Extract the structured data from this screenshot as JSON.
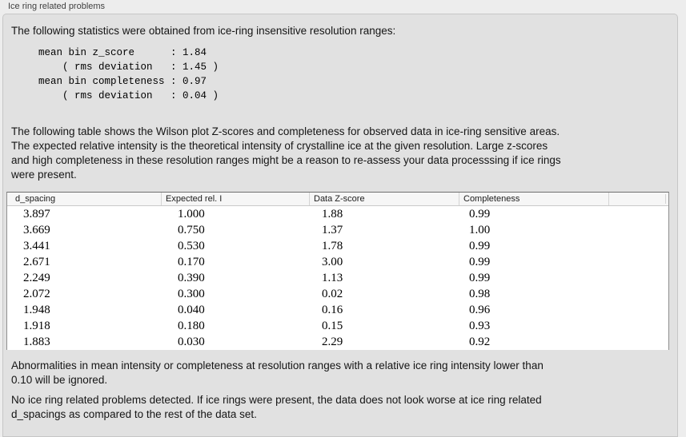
{
  "panel": {
    "title": "Ice ring related problems"
  },
  "intro_text": "The following statistics were obtained from ice-ring insensitive resolution ranges:",
  "stats_block": "mean bin z_score      : 1.84\n    ( rms deviation   : 1.45 )\nmean bin completeness : 0.97\n    ( rms deviation   : 0.04 )",
  "stats": {
    "mean_bin_z_score": "1.84",
    "z_score_rms_deviation": "1.45",
    "mean_bin_completeness": "0.97",
    "completeness_rms_deviation": "0.04"
  },
  "table_description": "The following table shows the Wilson plot Z-scores and completeness for observed data in ice-ring sensitive areas.\nThe expected relative intensity is the theoretical intensity of crystalline ice at the given resolution. Large z-scores\nand high completeness in these resolution ranges might be a reason to re-assess your data processsing if ice rings\nwere present.",
  "table": {
    "columns": [
      "d_spacing",
      "Expected rel. I",
      "Data Z-score",
      "Completeness"
    ],
    "rows": [
      [
        "3.897",
        "1.000",
        "1.88",
        "0.99"
      ],
      [
        "3.669",
        "0.750",
        "1.37",
        "1.00"
      ],
      [
        "3.441",
        "0.530",
        "1.78",
        "0.99"
      ],
      [
        "2.671",
        "0.170",
        "3.00",
        "0.99"
      ],
      [
        "2.249",
        "0.390",
        "1.13",
        "0.99"
      ],
      [
        "2.072",
        "0.300",
        "0.02",
        "0.98"
      ],
      [
        "1.948",
        "0.040",
        "0.16",
        "0.96"
      ],
      [
        "1.918",
        "0.180",
        "0.15",
        "0.93"
      ],
      [
        "1.883",
        "0.030",
        "2.29",
        "0.92"
      ]
    ]
  },
  "ignore_note": "Abnormalities in mean intensity or completeness at resolution ranges with a relative ice ring intensity lower than\n0.10 will be ignored.",
  "conclusion": "No ice ring related problems detected. If ice rings were present, the data does not look worse at ice ring related\nd_spacings as compared to the rest of the data set.",
  "colors": {
    "window_bg": "#ededed",
    "groupbox_bg": "#e1e1e1",
    "groupbox_border": "#c6c6c6",
    "table_bg": "#ffffff",
    "table_border": "#8f8f8f",
    "header_bg": "#f6f6f6",
    "text": "#1a1a1a"
  }
}
